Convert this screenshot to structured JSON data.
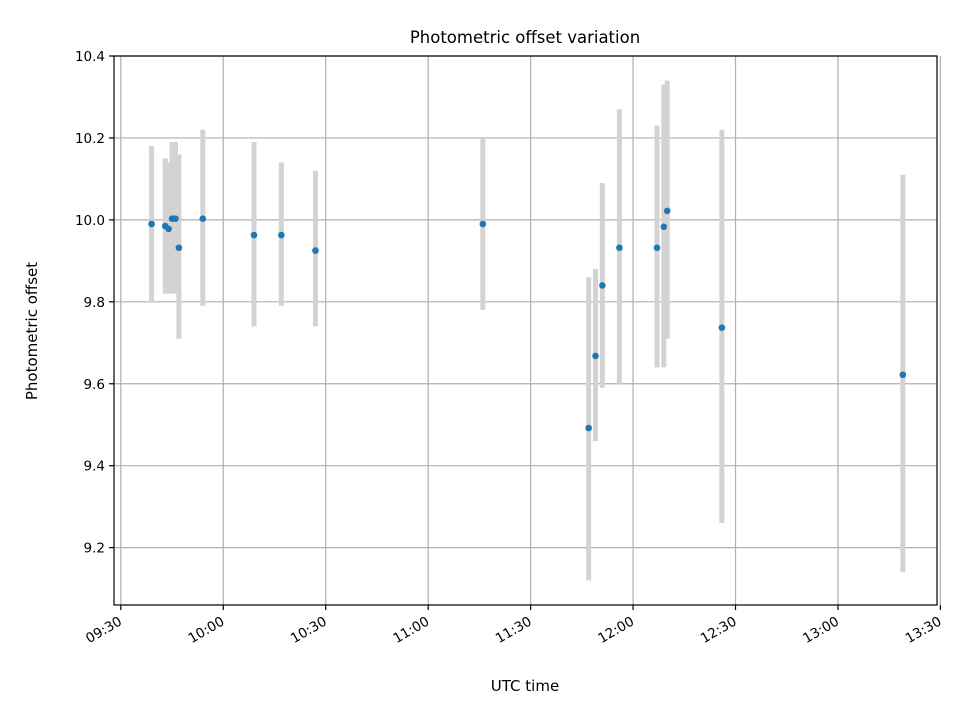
{
  "chart_data": {
    "type": "scatter",
    "title": "Photometric offset variation",
    "xlabel": "UTC time",
    "ylabel": "Photometric offset",
    "grid": true,
    "x_range": [
      "09:28",
      "13:29"
    ],
    "ylim": [
      9.06,
      10.4
    ],
    "x_ticks": [
      "09:30",
      "10:00",
      "10:30",
      "11:00",
      "11:30",
      "12:00",
      "12:30",
      "13:00",
      "13:30"
    ],
    "y_ticks": [
      "9.2",
      "9.4",
      "9.6",
      "9.8",
      "10.0",
      "10.2",
      "10.4"
    ],
    "point_color": "#1f77b4",
    "errorbar_color": "#d3d3d3",
    "points": [
      {
        "time": "09:39",
        "y": 9.99,
        "low": 9.8,
        "high": 10.18
      },
      {
        "time": "09:43",
        "y": 9.985,
        "low": 9.82,
        "high": 10.15
      },
      {
        "time": "09:44",
        "y": 9.978,
        "low": 9.82,
        "high": 10.14
      },
      {
        "time": "09:45",
        "y": 10.003,
        "low": 9.82,
        "high": 10.19
      },
      {
        "time": "09:46",
        "y": 10.003,
        "low": 9.82,
        "high": 10.19
      },
      {
        "time": "09:47",
        "y": 9.932,
        "low": 9.71,
        "high": 10.16
      },
      {
        "time": "09:54",
        "y": 10.003,
        "low": 9.79,
        "high": 10.22
      },
      {
        "time": "10:09",
        "y": 9.963,
        "low": 9.74,
        "high": 10.19
      },
      {
        "time": "10:17",
        "y": 9.963,
        "low": 9.79,
        "high": 10.14
      },
      {
        "time": "10:27",
        "y": 9.925,
        "low": 9.74,
        "high": 10.12
      },
      {
        "time": "11:16",
        "y": 9.99,
        "low": 9.78,
        "high": 10.2
      },
      {
        "time": "11:47",
        "y": 9.492,
        "low": 9.12,
        "high": 9.86
      },
      {
        "time": "11:49",
        "y": 9.668,
        "low": 9.46,
        "high": 9.88
      },
      {
        "time": "11:51",
        "y": 9.84,
        "low": 9.59,
        "high": 10.09
      },
      {
        "time": "11:56",
        "y": 9.932,
        "low": 9.6,
        "high": 10.27
      },
      {
        "time": "12:07",
        "y": 9.932,
        "low": 9.64,
        "high": 10.23
      },
      {
        "time": "12:09",
        "y": 9.983,
        "low": 9.64,
        "high": 10.33
      },
      {
        "time": "12:10",
        "y": 10.022,
        "low": 9.71,
        "high": 10.34
      },
      {
        "time": "12:26",
        "y": 9.737,
        "low": 9.26,
        "high": 10.22
      },
      {
        "time": "13:19",
        "y": 9.622,
        "low": 9.14,
        "high": 10.11
      }
    ]
  }
}
